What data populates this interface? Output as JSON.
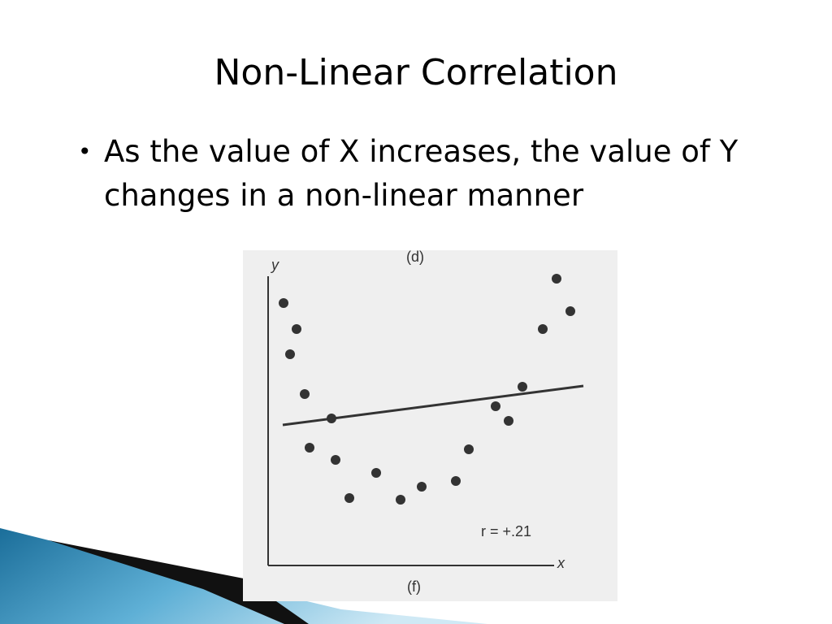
{
  "slide": {
    "title": "Non-Linear Correlation",
    "bullets": [
      "As the value of X increases, the value of Y changes in a non-linear manner"
    ],
    "figure": {
      "top_label": "(d)",
      "y_axis_label": "y",
      "x_axis_label": "x",
      "annotation": "r = +.21",
      "caption": "(f)"
    }
  }
}
